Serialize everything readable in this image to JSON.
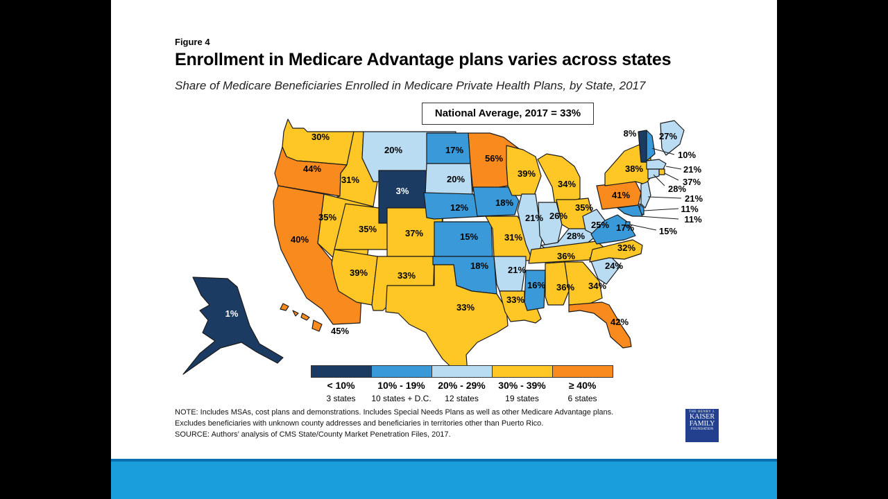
{
  "figure_label": "Figure 4",
  "title": "Enrollment in Medicare Advantage plans varies across states",
  "subtitle": "Share of Medicare Beneficiaries Enrolled in Medicare Private Health Plans, by State, 2017",
  "national_average": "National Average, 2017 = 33%",
  "colors": {
    "lt10": "#1b3b63",
    "10to19": "#3a9ad9",
    "20to29": "#b9dcf3",
    "30to39": "#fec726",
    "ge40": "#f98a1e",
    "border": "#1a1a1a",
    "bottom_bar": "#1a9fdc"
  },
  "states": [
    {
      "id": "WA",
      "value": "30%",
      "bin": "30to39"
    },
    {
      "id": "OR",
      "value": "44%",
      "bin": "ge40"
    },
    {
      "id": "CA",
      "value": "40%",
      "bin": "ge40"
    },
    {
      "id": "ID",
      "value": "31%",
      "bin": "30to39"
    },
    {
      "id": "NV",
      "value": "35%",
      "bin": "30to39"
    },
    {
      "id": "MT",
      "value": "20%",
      "bin": "20to29"
    },
    {
      "id": "WY",
      "value": "3%",
      "bin": "lt10"
    },
    {
      "id": "UT",
      "value": "35%",
      "bin": "30to39"
    },
    {
      "id": "CO",
      "value": "37%",
      "bin": "30to39"
    },
    {
      "id": "AZ",
      "value": "39%",
      "bin": "30to39"
    },
    {
      "id": "NM",
      "value": "33%",
      "bin": "30to39"
    },
    {
      "id": "ND",
      "value": "17%",
      "bin": "10to19"
    },
    {
      "id": "SD",
      "value": "20%",
      "bin": "20to29"
    },
    {
      "id": "NE",
      "value": "12%",
      "bin": "10to19"
    },
    {
      "id": "KS",
      "value": "15%",
      "bin": "10to19"
    },
    {
      "id": "OK",
      "value": "18%",
      "bin": "10to19"
    },
    {
      "id": "TX",
      "value": "33%",
      "bin": "30to39"
    },
    {
      "id": "MN",
      "value": "56%",
      "bin": "ge40"
    },
    {
      "id": "IA",
      "value": "18%",
      "bin": "10to19"
    },
    {
      "id": "MO",
      "value": "31%",
      "bin": "30to39"
    },
    {
      "id": "AR",
      "value": "21%",
      "bin": "20to29"
    },
    {
      "id": "LA",
      "value": "33%",
      "bin": "30to39"
    },
    {
      "id": "WI",
      "value": "39%",
      "bin": "30to39"
    },
    {
      "id": "IL",
      "value": "21%",
      "bin": "20to29"
    },
    {
      "id": "MS",
      "value": "16%",
      "bin": "10to19"
    },
    {
      "id": "MI",
      "value": "34%",
      "bin": "30to39"
    },
    {
      "id": "IN",
      "value": "26%",
      "bin": "20to29"
    },
    {
      "id": "KY",
      "value": "28%",
      "bin": "20to29"
    },
    {
      "id": "TN",
      "value": "36%",
      "bin": "30to39"
    },
    {
      "id": "AL",
      "value": "36%",
      "bin": "30to39"
    },
    {
      "id": "OH",
      "value": "35%",
      "bin": "30to39"
    },
    {
      "id": "WV",
      "value": "25%",
      "bin": "20to29"
    },
    {
      "id": "GA",
      "value": "34%",
      "bin": "30to39"
    },
    {
      "id": "FL",
      "value": "42%",
      "bin": "ge40"
    },
    {
      "id": "SC",
      "value": "24%",
      "bin": "20to29"
    },
    {
      "id": "NC",
      "value": "32%",
      "bin": "30to39"
    },
    {
      "id": "VA",
      "value": "17%",
      "bin": "10to19"
    },
    {
      "id": "PA",
      "value": "41%",
      "bin": "ge40"
    },
    {
      "id": "NY",
      "value": "38%",
      "bin": "30to39"
    },
    {
      "id": "VT",
      "value": "8%",
      "bin": "lt10"
    },
    {
      "id": "ME",
      "value": "27%",
      "bin": "20to29"
    },
    {
      "id": "NH",
      "value": "10%",
      "bin": "10to19"
    },
    {
      "id": "MA",
      "value": "21%",
      "bin": "20to29"
    },
    {
      "id": "RI",
      "value": "37%",
      "bin": "30to39"
    },
    {
      "id": "CT",
      "value": "28%",
      "bin": "20to29"
    },
    {
      "id": "NJ",
      "value": "21%",
      "bin": "20to29"
    },
    {
      "id": "DE",
      "value": "11%",
      "bin": "10to19"
    },
    {
      "id": "MD",
      "value": "11%",
      "bin": "10to19"
    },
    {
      "id": "DC",
      "value": "15%",
      "bin": "10to19"
    },
    {
      "id": "AK",
      "value": "1%",
      "bin": "lt10"
    },
    {
      "id": "HI",
      "value": "45%",
      "bin": "ge40"
    }
  ],
  "legend": [
    {
      "range": "< 10%",
      "count": "3 states",
      "bin": "lt10"
    },
    {
      "range": "10% - 19%",
      "count": "10 states + D.C.",
      "bin": "10to19"
    },
    {
      "range": "20% - 29%",
      "count": "12 states",
      "bin": "20to29"
    },
    {
      "range": "30% - 39%",
      "count": "19 states",
      "bin": "30to39"
    },
    {
      "range": "≥ 40%",
      "count": "6 states",
      "bin": "ge40"
    }
  ],
  "notes": [
    "NOTE: Includes MSAs, cost plans and demonstrations.  Includes Special Needs Plans as well as other Medicare Advantage plans.",
    "Excludes beneficiaries with unknown county addresses and beneficiaries in territories other than Puerto Rico.",
    "SOURCE:  Authors’ analysis of CMS State/County Market Penetration Files, 2017."
  ],
  "logo": {
    "line1": "THE HENRY J.",
    "line2": "KAISER",
    "line3": "FAMILY",
    "line4": "FOUNDATION"
  }
}
